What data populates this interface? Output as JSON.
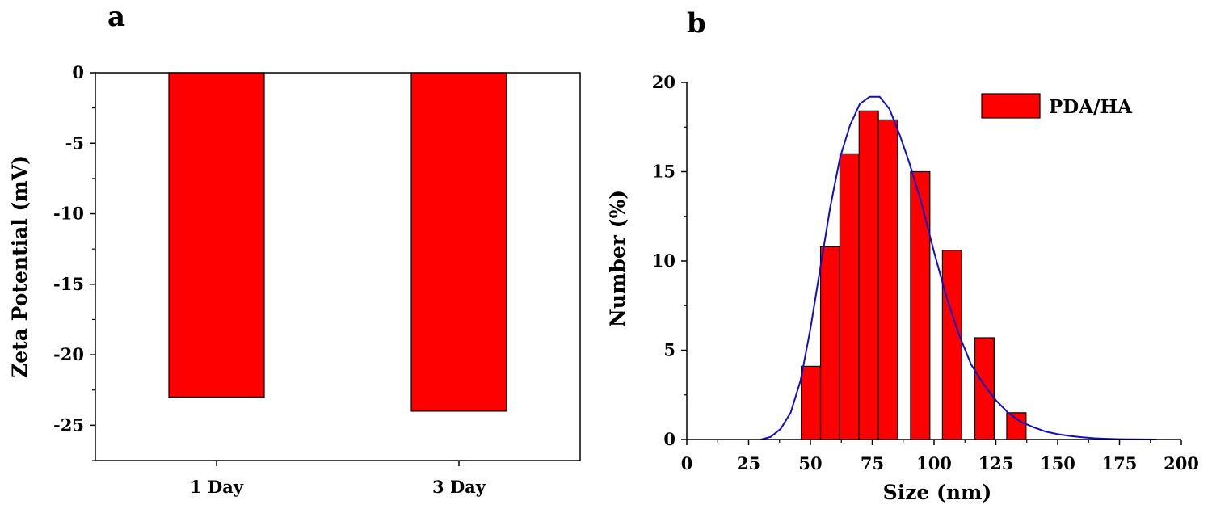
{
  "chart_data": [
    {
      "panel_label": "a",
      "type": "bar",
      "categories": [
        "1 Day",
        "3 Day"
      ],
      "values": [
        -23,
        -24
      ],
      "xlabel": "",
      "ylabel": "Zeta Potential (mV)",
      "ylim": [
        -27.5,
        0
      ],
      "yticks": [
        "0",
        "-5",
        "-10",
        "-15",
        "-20",
        "-25"
      ],
      "ytick_values": [
        0,
        -5,
        -10,
        -15,
        -20,
        -25
      ],
      "bar_color": "#ff0000",
      "grid": false
    },
    {
      "panel_label": "b",
      "type": "bar",
      "subtype": "histogram with fitted distribution curve",
      "xlabel": "Size (nm)",
      "ylabel": "Number (%)",
      "xlim": [
        0,
        200
      ],
      "ylim": [
        0,
        20
      ],
      "xticks": [
        "0",
        "25",
        "50",
        "75",
        "100",
        "125",
        "150",
        "175",
        "200"
      ],
      "xtick_values": [
        0,
        25,
        50,
        75,
        100,
        125,
        150,
        175,
        200
      ],
      "yticks": [
        "0",
        "5",
        "10",
        "15",
        "20"
      ],
      "ytick_values": [
        0,
        5,
        10,
        15,
        20
      ],
      "bin_width": 7.8,
      "bins": [
        {
          "center": 50.2,
          "value": 4.1
        },
        {
          "center": 58.0,
          "value": 10.8
        },
        {
          "center": 65.8,
          "value": 16.0
        },
        {
          "center": 73.6,
          "value": 18.4
        },
        {
          "center": 81.4,
          "value": 17.9
        },
        {
          "center": 94.4,
          "value": 15.0
        },
        {
          "center": 107.3,
          "value": 10.6
        },
        {
          "center": 120.4,
          "value": 5.7
        },
        {
          "center": 133.3,
          "value": 1.5
        }
      ],
      "fit_curve": {
        "color": "#1010c8",
        "x": [
          30,
          34,
          38,
          42,
          46,
          50,
          54,
          58,
          62,
          66,
          70,
          74,
          78,
          82,
          86,
          90,
          95,
          100,
          105,
          110,
          115,
          120,
          125,
          130,
          135,
          140,
          145,
          150,
          155,
          160,
          165,
          170,
          175,
          180,
          185,
          190
        ],
        "y": [
          0,
          0.15,
          0.6,
          1.5,
          3.3,
          6.2,
          9.6,
          13.0,
          15.8,
          17.6,
          18.8,
          19.2,
          19.2,
          18.5,
          17.1,
          15.5,
          13.2,
          10.5,
          8.0,
          5.9,
          4.2,
          3.1,
          2.2,
          1.5,
          1.0,
          0.7,
          0.45,
          0.3,
          0.2,
          0.12,
          0.07,
          0.04,
          0.02,
          0.01,
          0.005,
          0
        ]
      },
      "legend": {
        "label": "PDA/HA",
        "position": "top-right"
      },
      "bar_color": "#ff0000",
      "grid": false
    }
  ]
}
